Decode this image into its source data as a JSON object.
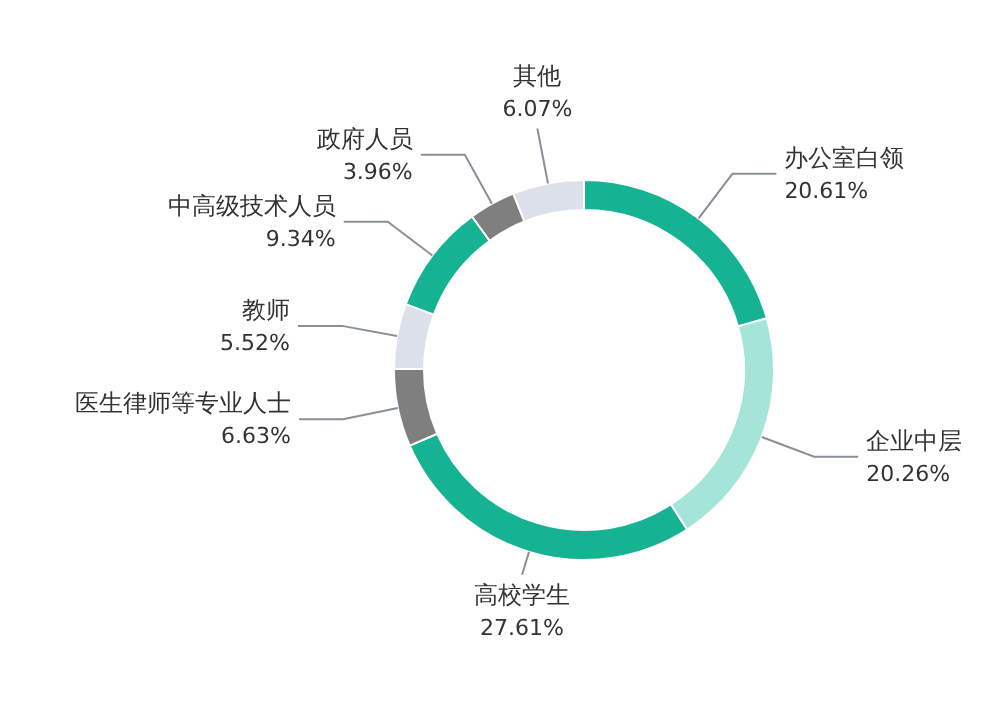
{
  "chart_data": {
    "type": "donut",
    "categories": [
      "办公室白领",
      "企业中层",
      "高校学生",
      "医生律师等专业人士",
      "教师",
      "中高级技术人员",
      "政府人员",
      "其他"
    ],
    "values": [
      20.61,
      20.26,
      27.61,
      6.63,
      5.52,
      9.34,
      3.96,
      6.07
    ],
    "value_labels": [
      "20.61%",
      "20.26%",
      "27.61%",
      "6.63%",
      "5.52%",
      "9.34%",
      "3.96%",
      "6.07%"
    ],
    "colors": [
      "#16b393",
      "#a5e4d8",
      "#16b393",
      "#7f7f7f",
      "#dbe0ea",
      "#16b393",
      "#7f7f7f",
      "#dbe0ea"
    ]
  }
}
